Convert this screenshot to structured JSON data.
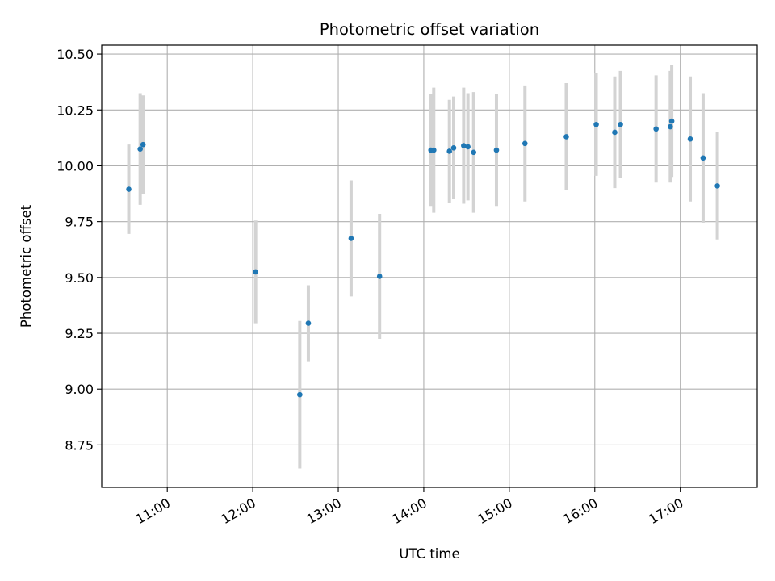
{
  "chart_data": {
    "type": "scatter",
    "title": "Photometric offset variation",
    "xlabel": "UTC time",
    "ylabel": "Photometric offset",
    "x_unit": "UTC time (HH:MM)",
    "xlim": [
      "10:14",
      "17:54"
    ],
    "ylim": [
      8.56,
      10.54
    ],
    "x_ticks": [
      "11:00",
      "12:00",
      "13:00",
      "14:00",
      "15:00",
      "16:00",
      "17:00"
    ],
    "y_ticks": [
      8.75,
      9.0,
      9.25,
      9.5,
      9.75,
      10.0,
      10.25,
      10.5
    ],
    "y_tick_labels": [
      "8.75",
      "9.00",
      "9.25",
      "9.50",
      "9.75",
      "10.00",
      "10.25",
      "10.50"
    ],
    "grid": true,
    "marker_color": "#1f77b4",
    "errorbar_color": "#d3d3d3",
    "points": [
      {
        "x": "10:33",
        "y": 9.895,
        "err": 0.2
      },
      {
        "x": "10:41",
        "y": 10.075,
        "err": 0.25
      },
      {
        "x": "10:43",
        "y": 10.095,
        "err": 0.22
      },
      {
        "x": "12:02",
        "y": 9.525,
        "err": 0.23
      },
      {
        "x": "12:33",
        "y": 8.975,
        "err": 0.33
      },
      {
        "x": "12:39",
        "y": 9.295,
        "err": 0.17
      },
      {
        "x": "13:09",
        "y": 9.675,
        "err": 0.26
      },
      {
        "x": "13:29",
        "y": 9.505,
        "err": 0.28
      },
      {
        "x": "14:05",
        "y": 10.07,
        "err": 0.25
      },
      {
        "x": "14:07",
        "y": 10.07,
        "err": 0.28
      },
      {
        "x": "14:18",
        "y": 10.065,
        "err": 0.23
      },
      {
        "x": "14:21",
        "y": 10.08,
        "err": 0.23
      },
      {
        "x": "14:28",
        "y": 10.09,
        "err": 0.26
      },
      {
        "x": "14:31",
        "y": 10.085,
        "err": 0.24
      },
      {
        "x": "14:35",
        "y": 10.06,
        "err": 0.27
      },
      {
        "x": "14:51",
        "y": 10.07,
        "err": 0.25
      },
      {
        "x": "15:11",
        "y": 10.1,
        "err": 0.26
      },
      {
        "x": "15:40",
        "y": 10.13,
        "err": 0.24
      },
      {
        "x": "16:01",
        "y": 10.185,
        "err": 0.23
      },
      {
        "x": "16:14",
        "y": 10.15,
        "err": 0.25
      },
      {
        "x": "16:18",
        "y": 10.185,
        "err": 0.24
      },
      {
        "x": "16:43",
        "y": 10.165,
        "err": 0.24
      },
      {
        "x": "16:53",
        "y": 10.175,
        "err": 0.25
      },
      {
        "x": "16:54",
        "y": 10.2,
        "err": 0.25
      },
      {
        "x": "17:07",
        "y": 10.12,
        "err": 0.28
      },
      {
        "x": "17:16",
        "y": 10.035,
        "err": 0.29
      },
      {
        "x": "17:26",
        "y": 9.91,
        "err": 0.24
      }
    ]
  }
}
